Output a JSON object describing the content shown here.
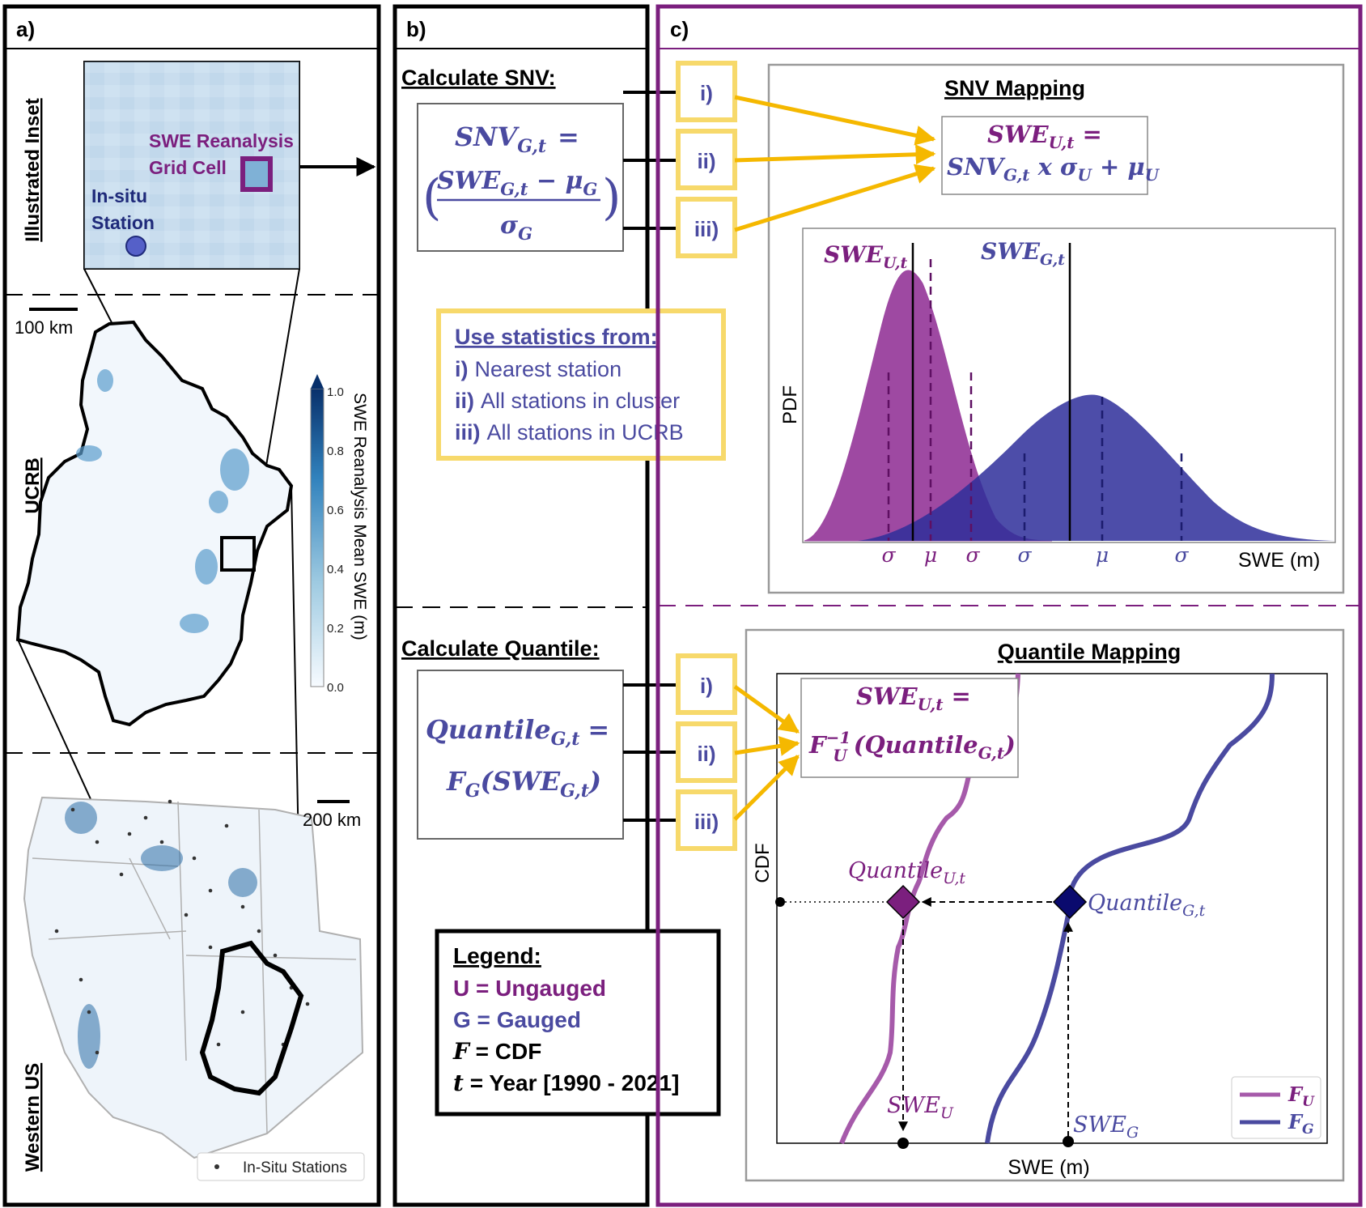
{
  "panel_a": {
    "label": "a)",
    "row_labels": [
      "Illustrated Inset",
      "UCRB",
      "Western US"
    ],
    "inset": {
      "grid_cell_label_line1": "SWE Reanalysis",
      "grid_cell_label_line2": "Grid Cell",
      "station_label_line1": "In-situ",
      "station_label_line2": "Station"
    },
    "ucrb_scale": "100 km",
    "west_scale": "200 km",
    "colorbar": {
      "label": "SWE Reanalysis Mean SWE (m)",
      "ticks": [
        "1.0",
        "0.8",
        "0.6",
        "0.4",
        "0.2",
        "0.0"
      ]
    },
    "legend_stations": "In-Situ Stations"
  },
  "panel_b": {
    "label": "b)",
    "snv_heading": "Calculate SNV:",
    "quantile_heading": "Calculate Quantile:",
    "stats_box": {
      "title": "Use statistics from:",
      "item1_num": "i)",
      "item1_text": "Nearest station",
      "item2_num": "ii)",
      "item2_text": "All stations in cluster",
      "item3_num": "iii)",
      "item3_text": "All stations in UCRB"
    },
    "legend": {
      "title": "Legend:",
      "u": "U = Ungauged",
      "g": "G = Gauged",
      "f_sym": "F",
      "f_text": " = CDF",
      "t_sym": "t",
      "t_text": " = Year [1990 - 2021]"
    },
    "roman": [
      "i)",
      "ii)",
      "iii)"
    ]
  },
  "panel_c": {
    "label": "c)",
    "snv_title": "SNV Mapping",
    "quantile_title": "Quantile Mapping",
    "pdf_ylabel": "PDF",
    "pdf_xlabel": "SWE (m)",
    "cdf_ylabel": "CDF",
    "cdf_xlabel": "SWE (m)",
    "sigma": "σ",
    "mu": "μ",
    "legend_fu": "F",
    "legend_fg": "F"
  },
  "colors": {
    "purple": "#7b1f7e",
    "blue": "#4a4aa0",
    "yellow": "#f5c400",
    "box_yellow": "#f7d96b"
  }
}
